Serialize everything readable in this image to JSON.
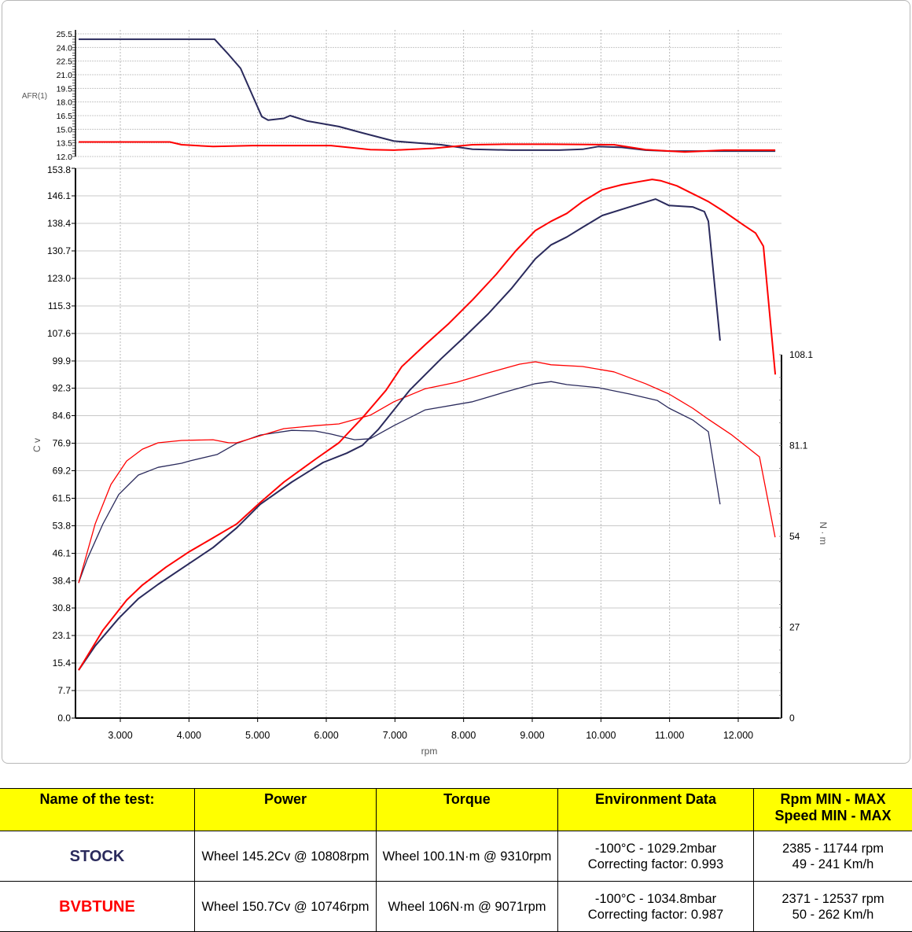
{
  "chart_data": {
    "type": "line",
    "xlabel": "rpm",
    "xlim": [
      2347,
      12630
    ],
    "xticks": [
      3000,
      4000,
      5000,
      6000,
      7000,
      8000,
      9000,
      10000,
      11000,
      12000
    ],
    "xtick_labels": [
      "3.000",
      "4.000",
      "5.000",
      "6.000",
      "7.000",
      "8.000",
      "9.000",
      "10.000",
      "11.000",
      "12.000"
    ],
    "afr": {
      "ylabel": "AFR(1)",
      "ylim": [
        12.0,
        25.5
      ],
      "ytick_labels": [
        "12.0",
        "13.5",
        "15.0",
        "16.5",
        "18.0",
        "19.5",
        "21.0",
        "22.5",
        "24.0",
        "25.5"
      ],
      "series": [
        {
          "name": "STOCK",
          "color": "#2a2a5c",
          "x": [
            2393,
            4374,
            4580,
            4752,
            4924,
            5061,
            5153,
            5382,
            5473,
            5725,
            6183,
            6527,
            6985,
            7328,
            7672,
            8130,
            8702,
            9389,
            9733,
            9962,
            10305,
            10649,
            10992,
            12539
          ],
          "y": [
            24.9,
            24.9,
            23.2,
            21.7,
            18.75,
            16.4,
            16.0,
            16.2,
            16.5,
            15.9,
            15.3,
            14.6,
            13.7,
            13.5,
            13.3,
            12.8,
            12.7,
            12.7,
            12.8,
            13.1,
            13.0,
            12.7,
            12.6,
            12.6
          ]
        },
        {
          "name": "BVBTUNE",
          "color": "#ff0000",
          "x": [
            2393,
            3721,
            3893,
            4351,
            4924,
            6069,
            6641,
            6985,
            7557,
            8130,
            8588,
            9275,
            10190,
            10649,
            11222,
            11794,
            12539
          ],
          "y": [
            13.6,
            13.6,
            13.3,
            13.1,
            13.2,
            13.2,
            12.75,
            12.7,
            12.9,
            13.3,
            13.35,
            13.35,
            13.3,
            12.75,
            12.5,
            12.7,
            12.7
          ]
        }
      ]
    },
    "power": {
      "ylabel": "C v",
      "ylim": [
        0,
        153.8
      ],
      "ytick_labels": [
        "0.0",
        "7.7",
        "15.4",
        "23.1",
        "30.8",
        "38.4",
        "46.1",
        "53.8",
        "61.5",
        "69.2",
        "76.9",
        "84.6",
        "92.3",
        "99.9",
        "107.6",
        "115.3",
        "123.0",
        "130.7",
        "138.4",
        "146.1",
        "153.8"
      ],
      "series": [
        {
          "name": "STOCK",
          "color": "#2a2a5c",
          "x": [
            2393,
            2634,
            2977,
            3263,
            3550,
            4008,
            4351,
            4695,
            5038,
            5496,
            5954,
            6298,
            6527,
            6756,
            6985,
            7214,
            7443,
            7672,
            8015,
            8359,
            8702,
            9046,
            9275,
            9504,
            9733,
            10019,
            10420,
            10797,
            10992,
            11336,
            11507,
            11565,
            11736
          ],
          "y": [
            13.4,
            20.2,
            27.9,
            33.4,
            37.4,
            43.3,
            47.7,
            53.2,
            59.8,
            66.0,
            71.5,
            74.1,
            76.3,
            80.7,
            86.2,
            91.7,
            96.1,
            100.5,
            106.7,
            113.1,
            120.3,
            128.5,
            132.4,
            134.6,
            137.3,
            140.6,
            143.0,
            145.2,
            143.4,
            143.0,
            141.7,
            139.0,
            105.6
          ]
        },
        {
          "name": "BVBTUNE",
          "color": "#ff0000",
          "x": [
            2393,
            2748,
            3092,
            3321,
            3664,
            4008,
            4351,
            4695,
            5038,
            5382,
            5840,
            6183,
            6527,
            6870,
            7099,
            7443,
            7786,
            8130,
            8473,
            8759,
            9046,
            9275,
            9504,
            9733,
            10019,
            10305,
            10534,
            10746,
            10878,
            11107,
            11336,
            11565,
            11794,
            12080,
            12252,
            12367,
            12539
          ],
          "y": [
            13.4,
            24.6,
            33.0,
            37.2,
            42.2,
            46.6,
            50.4,
            54.3,
            60.3,
            66.0,
            72.4,
            77.0,
            84.0,
            91.7,
            98.3,
            104.5,
            110.4,
            117.0,
            124.1,
            130.7,
            136.4,
            139.0,
            141.2,
            144.5,
            147.8,
            149.2,
            150.0,
            150.7,
            150.3,
            148.9,
            146.7,
            144.5,
            141.7,
            137.9,
            135.7,
            132.0,
            96.1
          ]
        }
      ]
    },
    "torque": {
      "ylabel": "N · m",
      "ylim": [
        0,
        108.1
      ],
      "ytick_labels": [
        "0",
        "27",
        "54",
        "81.1",
        "108.1"
      ],
      "series": [
        {
          "name": "STOCK",
          "color": "#2a2a5c",
          "x": [
            2393,
            2519,
            2748,
            2977,
            3263,
            3550,
            3893,
            4008,
            4409,
            4695,
            5038,
            5496,
            5840,
            6069,
            6412,
            6641,
            6985,
            7443,
            8130,
            8588,
            9046,
            9275,
            9504,
            9962,
            10420,
            10820,
            10992,
            11336,
            11565,
            11736
          ],
          "y": [
            40.2,
            47.3,
            57.8,
            66.5,
            72.3,
            74.6,
            75.8,
            76.5,
            78.4,
            81.7,
            84.2,
            85.6,
            85.4,
            84.5,
            82.8,
            83.1,
            87.0,
            91.7,
            94.1,
            96.9,
            99.5,
            100.1,
            99.2,
            98.3,
            96.4,
            94.5,
            92.2,
            88.7,
            85.2,
            63.6
          ]
        },
        {
          "name": "BVBTUNE",
          "color": "#ff0000",
          "x": [
            2393,
            2634,
            2863,
            3092,
            3321,
            3550,
            3893,
            4351,
            4580,
            4695,
            5038,
            5382,
            5840,
            6183,
            6641,
            6985,
            7443,
            7901,
            8359,
            8817,
            9046,
            9275,
            9733,
            10190,
            10649,
            10992,
            11336,
            11565,
            11908,
            12309,
            12537
          ],
          "y": [
            40.2,
            57.8,
            69.5,
            76.5,
            80.0,
            81.9,
            82.6,
            82.8,
            81.9,
            81.9,
            84.0,
            86.1,
            87.0,
            87.5,
            90.1,
            94.1,
            98.0,
            99.9,
            102.7,
            105.3,
            106.0,
            105.1,
            104.6,
            103.0,
            99.5,
            96.4,
            92.2,
            88.9,
            84.2,
            77.7,
            53.8
          ]
        }
      ]
    }
  },
  "table": {
    "headers": [
      "Name of the test:",
      "Power",
      "Torque",
      "Environment Data",
      "Rpm MIN - MAX",
      "Speed MIN - MAX"
    ],
    "rows": [
      {
        "name": "STOCK",
        "color": "#2a2a5c",
        "power": "Wheel 145.2Cv @ 10808rpm",
        "torque": "Wheel 100.1N·m @ 9310rpm",
        "env1": "-100°C - 1029.2mbar",
        "env2": "Correcting factor: 0.993",
        "rpm": "2385 - 11744 rpm",
        "speed": "49 - 241 Km/h"
      },
      {
        "name": "BVBTUNE",
        "color": "#ff0000",
        "power": "Wheel 150.7Cv @ 10746rpm",
        "torque": "Wheel 106N·m @ 9071rpm",
        "env1": "-100°C - 1034.8mbar",
        "env2": "Correcting factor: 0.987",
        "rpm": "2371 - 12537 rpm",
        "speed": "50 - 262 Km/h"
      }
    ]
  }
}
